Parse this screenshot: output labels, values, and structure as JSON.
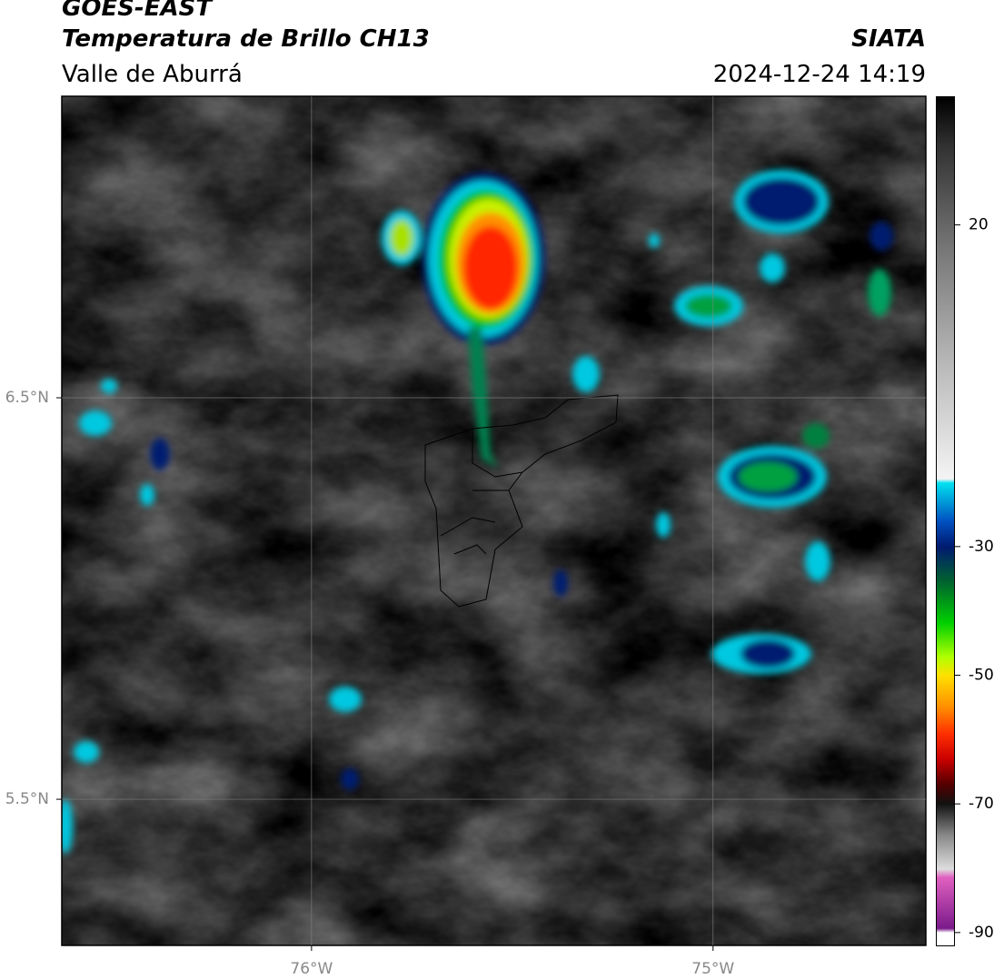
{
  "header": {
    "line1": "GOES-EAST",
    "title": "Temperatura de Brillo CH13",
    "subtitle": "Valle de Aburrá",
    "source": "SIATA",
    "timestamp": "2024-12-24 14:19"
  },
  "map": {
    "lat_lim": [
      5.136,
      7.251
    ],
    "lon_lim": [
      -76.622,
      -74.47
    ],
    "lat_ticks": [
      {
        "value": 6.5,
        "label": "6.5°N"
      },
      {
        "value": 5.5,
        "label": "5.5°N"
      }
    ],
    "lon_ticks": [
      {
        "value": -76,
        "label": "76°W"
      },
      {
        "value": -75,
        "label": "75°W"
      }
    ]
  },
  "colorbar": {
    "range": [
      -92,
      40
    ],
    "ticks": [
      20,
      -30,
      -50,
      -70,
      -90
    ]
  }
}
